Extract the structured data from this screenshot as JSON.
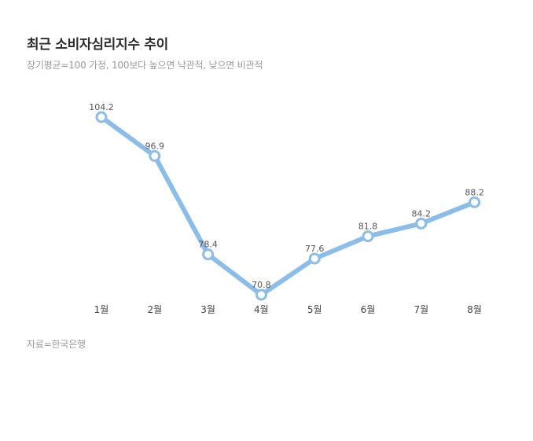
{
  "header": {
    "title": "최근 소비자심리지수 추이",
    "subtitle": "장기평균=100 가정, 100보다 높으면 낙관적, 낮으면 비관적"
  },
  "footer": {
    "source": "자료=한국은행"
  },
  "colors": {
    "line": "#8bbdea",
    "marker_fill": "#ffffff"
  },
  "chart_data": {
    "type": "line",
    "categories": [
      "1월",
      "2월",
      "3월",
      "4월",
      "5월",
      "6월",
      "7월",
      "8월"
    ],
    "series": [
      {
        "values": [
          104.2,
          96.9,
          78.4,
          70.8,
          77.6,
          81.8,
          84.2,
          88.2
        ]
      }
    ],
    "data_labels": [
      "104.2",
      "96.9",
      "78.4",
      "70.8",
      "77.6",
      "81.8",
      "84.2",
      "88.2"
    ],
    "ylim": [
      70.8,
      104.2
    ],
    "grid": false,
    "legend": "none"
  }
}
